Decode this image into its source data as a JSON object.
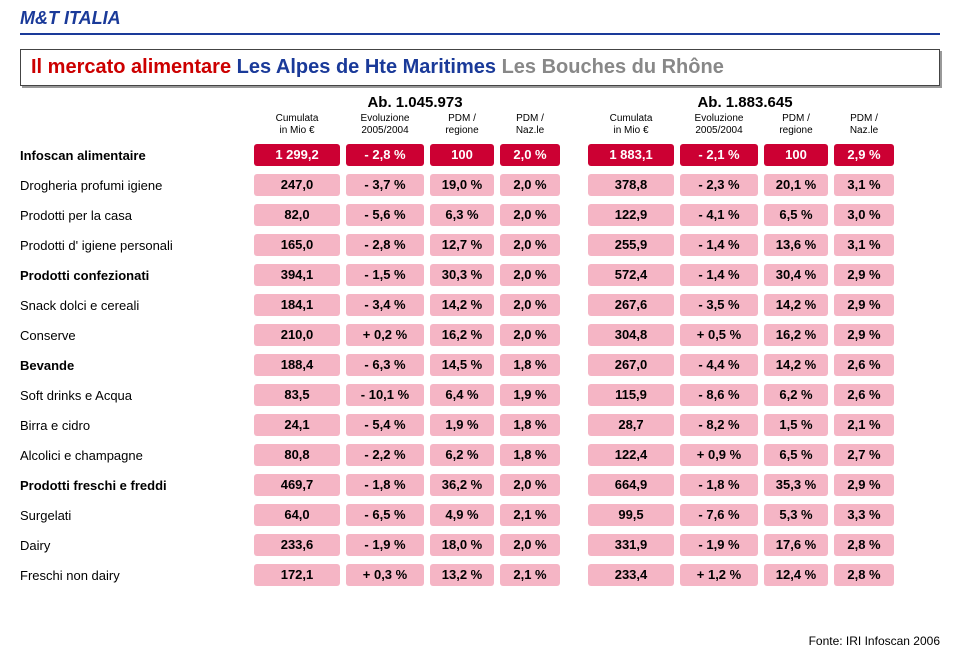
{
  "brand": "M&T ITALIA",
  "title": {
    "part1": "Il mercato alimentare",
    "part2": "Les Alpes de Hte Maritimes",
    "part3": "Les Bouches du Rhône"
  },
  "populations": {
    "left": "Ab. 1.045.973",
    "right": "Ab. 1.883.645"
  },
  "headers": {
    "c1a": "Cumulata",
    "c1b": "in Mio €",
    "c2a": "Evoluzione",
    "c2b": "2005/2004",
    "c3a": "PDM /",
    "c3b": "regione",
    "c4a": "PDM /",
    "c4b": "Naz.le"
  },
  "colors": {
    "red_bg": "#cc0033",
    "red_text": "#ffffff",
    "pink_bg": "#f5b5c5",
    "pink_text": "#000000"
  },
  "rows": [
    {
      "label": "Infoscan alimentaire",
      "bold": true,
      "variant": "red",
      "left": {
        "cum": "1 299,2",
        "evo": "- 2,8 %",
        "pdmR": "100",
        "pdmN": "2,0 %"
      },
      "right": {
        "cum": "1 883,1",
        "evo": "- 2,1 %",
        "pdmR": "100",
        "pdmN": "2,9 %"
      }
    },
    {
      "label": "Drogheria profumi igiene",
      "bold": false,
      "variant": "pink",
      "left": {
        "cum": "247,0",
        "evo": "- 3,7 %",
        "pdmR": "19,0 %",
        "pdmN": "2,0 %"
      },
      "right": {
        "cum": "378,8",
        "evo": "- 2,3 %",
        "pdmR": "20,1 %",
        "pdmN": "3,1 %"
      }
    },
    {
      "label": "Prodotti per la casa",
      "bold": false,
      "variant": "pink",
      "left": {
        "cum": "82,0",
        "evo": "- 5,6 %",
        "pdmR": "6,3 %",
        "pdmN": "2,0 %"
      },
      "right": {
        "cum": "122,9",
        "evo": "- 4,1 %",
        "pdmR": "6,5 %",
        "pdmN": "3,0 %"
      }
    },
    {
      "label": "Prodotti d' igiene personali",
      "bold": false,
      "variant": "pink",
      "left": {
        "cum": "165,0",
        "evo": "- 2,8 %",
        "pdmR": "12,7 %",
        "pdmN": "2,0 %"
      },
      "right": {
        "cum": "255,9",
        "evo": "- 1,4 %",
        "pdmR": "13,6 %",
        "pdmN": "3,1 %"
      }
    },
    {
      "label": "Prodotti confezionati",
      "bold": true,
      "variant": "pink",
      "left": {
        "cum": "394,1",
        "evo": "- 1,5 %",
        "pdmR": "30,3 %",
        "pdmN": "2,0 %"
      },
      "right": {
        "cum": "572,4",
        "evo": "- 1,4 %",
        "pdmR": "30,4 %",
        "pdmN": "2,9 %"
      }
    },
    {
      "label": "Snack dolci e cereali",
      "bold": false,
      "variant": "pink",
      "left": {
        "cum": "184,1",
        "evo": "- 3,4 %",
        "pdmR": "14,2 %",
        "pdmN": "2,0 %"
      },
      "right": {
        "cum": "267,6",
        "evo": "- 3,5 %",
        "pdmR": "14,2 %",
        "pdmN": "2,9 %"
      }
    },
    {
      "label": "Conserve",
      "bold": false,
      "variant": "pink",
      "left": {
        "cum": "210,0",
        "evo": "+ 0,2 %",
        "pdmR": "16,2 %",
        "pdmN": "2,0 %"
      },
      "right": {
        "cum": "304,8",
        "evo": "+ 0,5 %",
        "pdmR": "16,2 %",
        "pdmN": "2,9 %"
      }
    },
    {
      "label": "Bevande",
      "bold": true,
      "variant": "pink",
      "left": {
        "cum": "188,4",
        "evo": "- 6,3 %",
        "pdmR": "14,5 %",
        "pdmN": "1,8 %"
      },
      "right": {
        "cum": "267,0",
        "evo": "- 4,4 %",
        "pdmR": "14,2 %",
        "pdmN": "2,6 %"
      }
    },
    {
      "label": "Soft drinks e Acqua",
      "bold": false,
      "variant": "pink",
      "left": {
        "cum": "83,5",
        "evo": "- 10,1 %",
        "pdmR": "6,4 %",
        "pdmN": "1,9 %"
      },
      "right": {
        "cum": "115,9",
        "evo": "- 8,6 %",
        "pdmR": "6,2 %",
        "pdmN": "2,6 %"
      }
    },
    {
      "label": "Birra e cidro",
      "bold": false,
      "variant": "pink",
      "left": {
        "cum": "24,1",
        "evo": "- 5,4 %",
        "pdmR": "1,9 %",
        "pdmN": "1,8 %"
      },
      "right": {
        "cum": "28,7",
        "evo": "- 8,2 %",
        "pdmR": "1,5 %",
        "pdmN": "2,1 %"
      }
    },
    {
      "label": "Alcolici e champagne",
      "bold": false,
      "variant": "pink",
      "left": {
        "cum": "80,8",
        "evo": "- 2,2 %",
        "pdmR": "6,2 %",
        "pdmN": "1,8 %"
      },
      "right": {
        "cum": "122,4",
        "evo": "+ 0,9 %",
        "pdmR": "6,5 %",
        "pdmN": "2,7 %"
      }
    },
    {
      "label": "Prodotti freschi e  freddi",
      "bold": true,
      "variant": "pink",
      "left": {
        "cum": "469,7",
        "evo": "- 1,8 %",
        "pdmR": "36,2 %",
        "pdmN": "2,0 %"
      },
      "right": {
        "cum": "664,9",
        "evo": "- 1,8 %",
        "pdmR": "35,3 %",
        "pdmN": "2,9 %"
      }
    },
    {
      "label": "Surgelati",
      "bold": false,
      "variant": "pink",
      "left": {
        "cum": "64,0",
        "evo": "- 6,5 %",
        "pdmR": "4,9 %",
        "pdmN": "2,1 %"
      },
      "right": {
        "cum": "99,5",
        "evo": "- 7,6 %",
        "pdmR": "5,3 %",
        "pdmN": "3,3 %"
      }
    },
    {
      "label": "Dairy",
      "bold": false,
      "variant": "pink",
      "left": {
        "cum": "233,6",
        "evo": "- 1,9 %",
        "pdmR": "18,0 %",
        "pdmN": "2,0 %"
      },
      "right": {
        "cum": "331,9",
        "evo": "- 1,9 %",
        "pdmR": "17,6 %",
        "pdmN": "2,8 %"
      }
    },
    {
      "label": "Freschi non dairy",
      "bold": false,
      "variant": "pink",
      "left": {
        "cum": "172,1",
        "evo": "+ 0,3 %",
        "pdmR": "13,2 %",
        "pdmN": "2,1 %"
      },
      "right": {
        "cum": "233,4",
        "evo": "+ 1,2 %",
        "pdmR": "12,4 %",
        "pdmN": "2,8 %"
      }
    }
  ],
  "footer": "Fonte: IRI Infoscan 2006"
}
